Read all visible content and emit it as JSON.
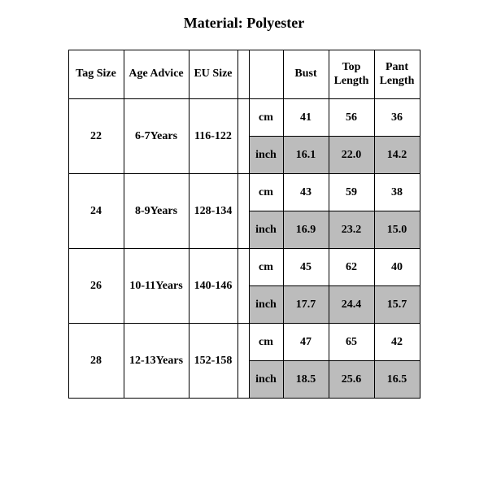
{
  "title": "Material: Polyester",
  "columns": {
    "tag_size": "Tag Size",
    "age_advice": "Age Advice",
    "eu_size": "EU Size",
    "bust": "Bust",
    "top_length": "Top Length",
    "pant_length": "Pant Length"
  },
  "units": {
    "cm": "cm",
    "inch": "inch"
  },
  "colors": {
    "background": "#ffffff",
    "text": "#000000",
    "border": "#000000",
    "shaded": "#bcbcbc"
  },
  "rows": [
    {
      "tag_size": "22",
      "age_advice": "6-7Years",
      "eu_size": "116-122",
      "cm": {
        "bust": "41",
        "top_length": "56",
        "pant_length": "36"
      },
      "inch": {
        "bust": "16.1",
        "top_length": "22.0",
        "pant_length": "14.2"
      }
    },
    {
      "tag_size": "24",
      "age_advice": "8-9Years",
      "eu_size": "128-134",
      "cm": {
        "bust": "43",
        "top_length": "59",
        "pant_length": "38"
      },
      "inch": {
        "bust": "16.9",
        "top_length": "23.2",
        "pant_length": "15.0"
      }
    },
    {
      "tag_size": "26",
      "age_advice": "10-11Years",
      "eu_size": "140-146",
      "cm": {
        "bust": "45",
        "top_length": "62",
        "pant_length": "40"
      },
      "inch": {
        "bust": "17.7",
        "top_length": "24.4",
        "pant_length": "15.7"
      }
    },
    {
      "tag_size": "28",
      "age_advice": "12-13Years",
      "eu_size": "152-158",
      "cm": {
        "bust": "47",
        "top_length": "65",
        "pant_length": "42"
      },
      "inch": {
        "bust": "18.5",
        "top_length": "25.6",
        "pant_length": "16.5"
      }
    }
  ]
}
